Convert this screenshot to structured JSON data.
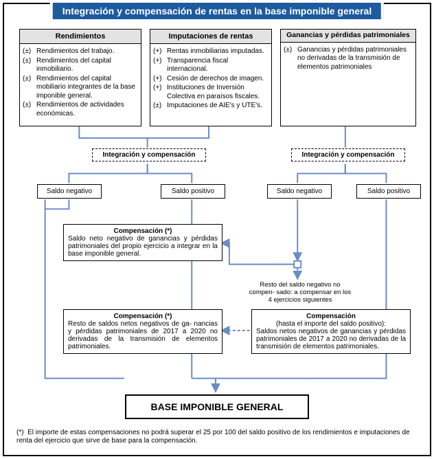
{
  "colors": {
    "accent": "#6a8cc7",
    "banner": "#1d5a9e"
  },
  "title": "Integración y compensación de rentas en la base imponible general",
  "top": {
    "a": {
      "header": "Rendimientos",
      "items": [
        {
          "s": "(±)",
          "t": "Rendimientos del trabajo."
        },
        {
          "s": "(±)",
          "t": "Rendimientos del capital inmobiliario."
        },
        {
          "s": "(±)",
          "t": "Rendimientos del capital mobiliario integrantes de la base imponible general."
        },
        {
          "s": "(±)",
          "t": "Rendimientos de actividades económicas."
        }
      ]
    },
    "b": {
      "header": "Imputaciones de rentas",
      "items": [
        {
          "s": "(+)",
          "t": "Rentas inmobiliarias imputadas."
        },
        {
          "s": "(+)",
          "t": "Transparencia fiscal internacional."
        },
        {
          "s": "(+)",
          "t": "Cesión de derechos de imagen."
        },
        {
          "s": "(+)",
          "t": "Instituciones de Inversión Colectiva en paraísos fiscales."
        },
        {
          "s": "(±)",
          "t": "Imputaciones de AIE's y UTE's."
        }
      ]
    },
    "c": {
      "header": "Ganancias y pérdidas patrimoniales",
      "items": [
        {
          "s": "(±)",
          "t": "Ganancias y pérdidas patrimoniales no derivadas de la transmisión de elementos patrimoniales"
        }
      ]
    }
  },
  "labels": {
    "ic_left": "Integración y compensación",
    "ic_right": "Integración y compensación",
    "sn_l": "Saldo negativo",
    "sp_l": "Saldo positivo",
    "sn_r": "Saldo negativo",
    "sp_r": "Saldo positivo"
  },
  "comp1": {
    "title": "Compensación (*)",
    "body": "Saldo neto negativo de ganancias y pérdidas patrimoniales del propio ejercicio a integrar en la base imponible general."
  },
  "rest_note": "Resto del saldo negativo no compen-\nsado: a compensar en los 4 ejercicios siguientes",
  "comp2": {
    "title": "Compensación (*)",
    "body": "Resto de saldos netos negativos de ga-\nnancias y pérdidas patrimoniales de 2017 a 2020 no derivadas de la transmisión de elementos patrimoniales."
  },
  "comp3": {
    "title": "Compensación",
    "subtitle": "(hasta el importe del saldo positivo):",
    "body": "Saldos netos negativos de ganancias y pérdidas patrimoniales de 2017 a 2020 no derivadas de la transmisión de elementos patrimoniales."
  },
  "final": "BASE IMPONIBLE GENERAL",
  "footnote_marker": "(*)",
  "footnote": "El importe de estas compensaciones no podrá superar el 25 por 100 del saldo positivo de los rendimientos e imputaciones de renta del ejercicio que sirve de base para la compensación."
}
